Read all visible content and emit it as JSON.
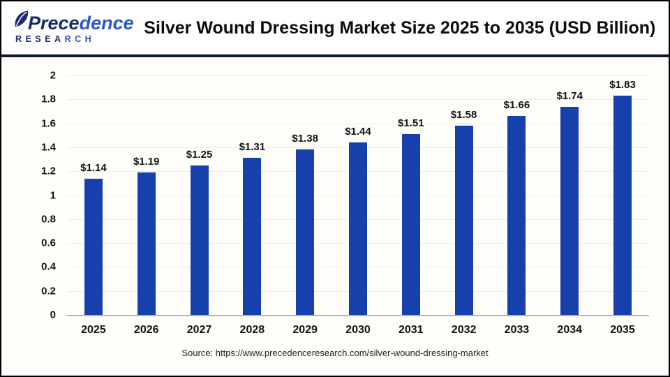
{
  "logo": {
    "brand_dark": "Prece",
    "brand_blue": "dence",
    "research_dark": "RESEA",
    "research_blue": "RCH",
    "leaf_icon_color_dark": "#1b2a6b",
    "leaf_icon_color_blue": "#2d55c8"
  },
  "header": {
    "title": "Silver Wound Dressing Market Size 2025 to 2035 (USD Billion)"
  },
  "chart_data": {
    "type": "bar",
    "title": "Silver Wound Dressing Market Size 2025 to 2035 (USD Billion)",
    "categories": [
      "2025",
      "2026",
      "2027",
      "2028",
      "2029",
      "2030",
      "2031",
      "2032",
      "2033",
      "2034",
      "2035"
    ],
    "values": [
      1.14,
      1.19,
      1.25,
      1.31,
      1.38,
      1.44,
      1.51,
      1.58,
      1.66,
      1.74,
      1.83
    ],
    "value_labels": [
      "$1.14",
      "$1.19",
      "$1.25",
      "$1.31",
      "$1.38",
      "$1.44",
      "$1.51",
      "$1.58",
      "$1.66",
      "$1.74",
      "$1.83"
    ],
    "xlabel": "",
    "ylabel": "",
    "ylim": [
      0,
      2
    ],
    "yticks": [
      "0",
      "0.2",
      "0.4",
      "0.6",
      "0.8",
      "1",
      "1.2",
      "1.4",
      "1.6",
      "1.8",
      "2"
    ],
    "grid": true,
    "legend": false,
    "bar_color": "#1641ad",
    "gridline_color": "#ececec",
    "baseline_color": "#b3b3b3"
  },
  "footer": {
    "source": "Source: https://www.precedenceresearch.com/silver-wound-dressing-market"
  }
}
